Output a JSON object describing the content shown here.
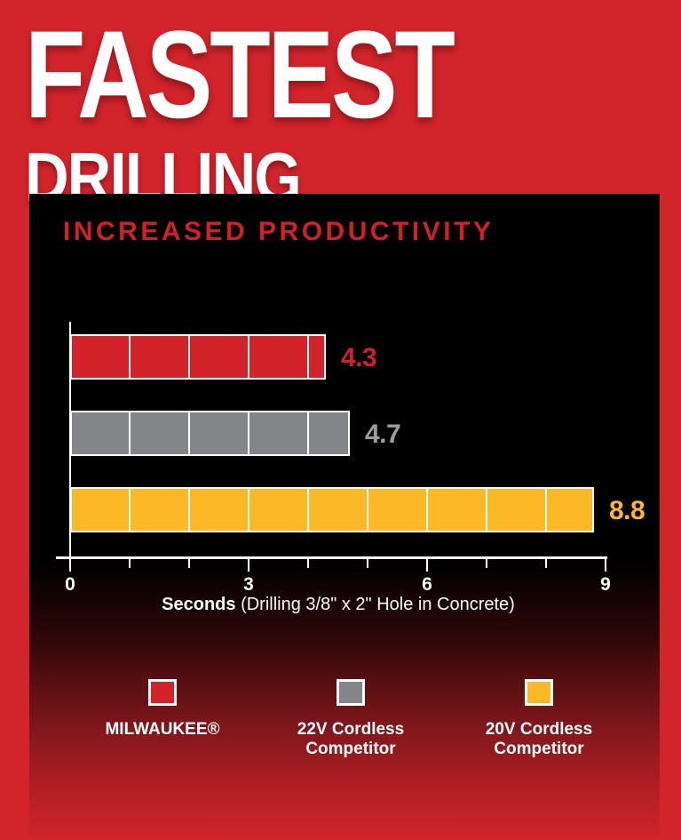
{
  "header": {
    "line1": "FASTEST",
    "line2": "DRILLING"
  },
  "chart_data": {
    "type": "bar",
    "orientation": "horizontal",
    "title": "INCREASED PRODUCTIVITY",
    "categories": [
      "MILWAUKEE®",
      "22V Cordless Competitor",
      "20V Cordless Competitor"
    ],
    "values": [
      4.3,
      4.7,
      8.8
    ],
    "value_labels": [
      "4.3",
      "4.7",
      "8.8"
    ],
    "bar_colors": [
      "#d2232a",
      "#838588",
      "#fcb827"
    ],
    "value_label_colors": [
      "#d0212a",
      "#9b9da0",
      "#fcb827"
    ],
    "xlabel_bold": "Seconds",
    "xlabel_rest": " (Drilling 3/8\" x 2\" Hole in Concrete)",
    "xlim": [
      0,
      9
    ],
    "xticks": [
      0,
      3,
      6,
      9
    ],
    "minor_ticks_every": 1,
    "bar_segment_unit": 1,
    "axis_color": "#ffffff",
    "grid": false,
    "legend_position": "bottom"
  },
  "legend": {
    "items": [
      {
        "label_lines": [
          "MILWAUKEE®",
          ""
        ],
        "color": "#d2232a"
      },
      {
        "label_lines": [
          "22V Cordless",
          "Competitor"
        ],
        "color": "#838588"
      },
      {
        "label_lines": [
          "20V Cordless",
          "Competitor"
        ],
        "color": "#fcb827"
      }
    ]
  },
  "colors": {
    "background_red": "#d2242b",
    "panel_black": "#000000",
    "white": "#ffffff"
  }
}
